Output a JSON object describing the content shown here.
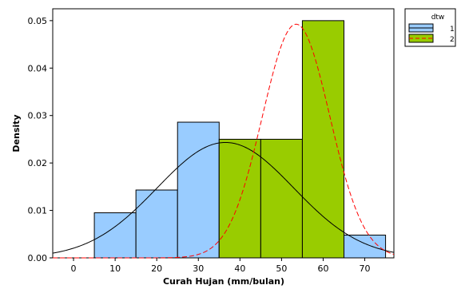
{
  "chart_data": {
    "type": "histogram",
    "xlabel": "Curah Hujan (mm/bulan)",
    "ylabel": "Density",
    "xlim": [
      -5,
      77
    ],
    "ylim": [
      0,
      0.0525
    ],
    "x_ticks": [
      0,
      10,
      20,
      30,
      40,
      50,
      60,
      70
    ],
    "y_ticks": [
      0.0,
      0.01,
      0.02,
      0.03,
      0.04,
      0.05
    ],
    "y_tick_labels": [
      "0.00",
      "0.01",
      "0.02",
      "0.03",
      "0.04",
      "0.05"
    ],
    "grid": false,
    "legend": {
      "title": "dtw",
      "placement": "top-right outside",
      "entries": [
        {
          "name": "1",
          "fill": "#99ccff",
          "line": "solid",
          "line_color": "#000000"
        },
        {
          "name": "2",
          "fill": "#99cc00",
          "line": "dashed",
          "line_color": "#ff0000"
        }
      ]
    },
    "series": [
      {
        "name": "1",
        "fill": "#99ccff",
        "bins": [
          {
            "x0": 5,
            "x1": 15,
            "density": 0.0095
          },
          {
            "x0": 15,
            "x1": 25,
            "density": 0.0143
          },
          {
            "x0": 25,
            "x1": 35,
            "density": 0.0286
          },
          {
            "x0": 35,
            "x1": 45,
            "density": 0.0238
          },
          {
            "x0": 45,
            "x1": 55,
            "density": 0.0048
          },
          {
            "x0": 55,
            "x1": 65,
            "density": 0.0048
          },
          {
            "x0": 65,
            "x1": 75,
            "density": 0.0048
          }
        ],
        "curve": {
          "type": "normal",
          "mean": 36.5,
          "sd": 16.4,
          "color": "#000000",
          "style": "solid"
        }
      },
      {
        "name": "2",
        "fill": "#99cc00",
        "bins": [
          {
            "x0": 35,
            "x1": 45,
            "density": 0.025
          },
          {
            "x0": 45,
            "x1": 55,
            "density": 0.025
          },
          {
            "x0": 55,
            "x1": 65,
            "density": 0.05
          }
        ],
        "curve": {
          "type": "normal",
          "mean": 53.5,
          "sd": 8.1,
          "color": "#ff0000",
          "style": "dashed"
        }
      }
    ]
  }
}
